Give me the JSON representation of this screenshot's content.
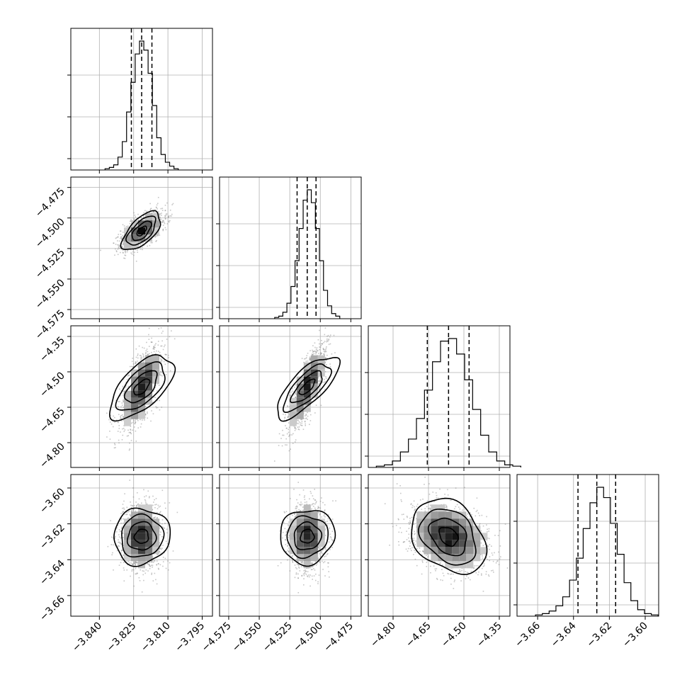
{
  "chart_data": {
    "type": "corner",
    "n_params": 4,
    "params": [
      {
        "center": -3.8215,
        "sigma": 0.00445,
        "range": [
          -3.8525,
          -3.7905
        ],
        "ticks": [
          -3.84,
          -3.825,
          -3.81,
          -3.795
        ],
        "tick_labels": [
          "−3.840",
          "−3.825",
          "−3.810",
          "−3.795"
        ],
        "quantiles": [
          -3.826,
          -3.8215,
          -3.817
        ],
        "hist_counts": [
          1,
          2,
          4,
          10,
          22,
          45,
          68,
          90,
          100,
          93,
          75,
          50,
          25,
          12,
          6,
          3,
          1
        ]
      },
      {
        "center": -4.5107,
        "sigma": 0.0074,
        "range": [
          -4.5825,
          -4.4665
        ],
        "ticks": [
          -4.575,
          -4.55,
          -4.525,
          -4.5,
          -4.475
        ],
        "tick_labels": [
          "−4.575",
          "−4.550",
          "−4.525",
          "−4.500",
          "−4.475"
        ],
        "quantiles": [
          -4.519,
          -4.5107,
          -4.5035
        ],
        "hist_counts": [
          1,
          2,
          5,
          12,
          25,
          45,
          70,
          92,
          100,
          90,
          70,
          45,
          22,
          10,
          4,
          2
        ]
      },
      {
        "center": -4.565,
        "sigma": 0.085,
        "range": [
          -4.905,
          -4.305
        ],
        "ticks": [
          -4.8,
          -4.65,
          -4.5,
          -4.35
        ],
        "tick_labels": [
          "−4.80",
          "−4.65",
          "−4.50",
          "−4.35"
        ],
        "quantiles": [
          -4.655,
          -4.565,
          -4.478
        ],
        "hist_counts": [
          1,
          2,
          5,
          12,
          22,
          38,
          60,
          82,
          98,
          100,
          88,
          68,
          45,
          25,
          12,
          5,
          2,
          1
        ]
      },
      {
        "center": -3.627,
        "sigma": 0.0095,
        "range": [
          -3.6715,
          -3.5925
        ],
        "ticks": [
          -3.66,
          -3.64,
          -3.62,
          -3.6
        ],
        "tick_labels": [
          "−3.66",
          "−3.64",
          "−3.62",
          "−3.60"
        ],
        "quantiles": [
          -3.6375,
          -3.627,
          -3.6165
        ],
        "hist_counts": [
          1,
          2,
          4,
          8,
          15,
          28,
          45,
          68,
          88,
          100,
          92,
          72,
          48,
          26,
          12,
          5,
          2,
          1
        ]
      }
    ],
    "pairs": [
      {
        "row": 1,
        "col": 0,
        "rho": 0.62
      },
      {
        "row": 2,
        "col": 0,
        "rho": 0.62
      },
      {
        "row": 2,
        "col": 1,
        "rho": 0.75
      },
      {
        "row": 3,
        "col": 0,
        "rho": 0.05
      },
      {
        "row": 3,
        "col": 1,
        "rho": 0.05
      },
      {
        "row": 3,
        "col": 2,
        "rho": -0.3
      }
    ],
    "contour_levels_sigma": [
      0.5,
      1.0,
      1.5,
      2.0
    ],
    "grid": true,
    "colors": {
      "line": "#000000",
      "grid": "#b0b0b0",
      "points": "#808080"
    }
  }
}
